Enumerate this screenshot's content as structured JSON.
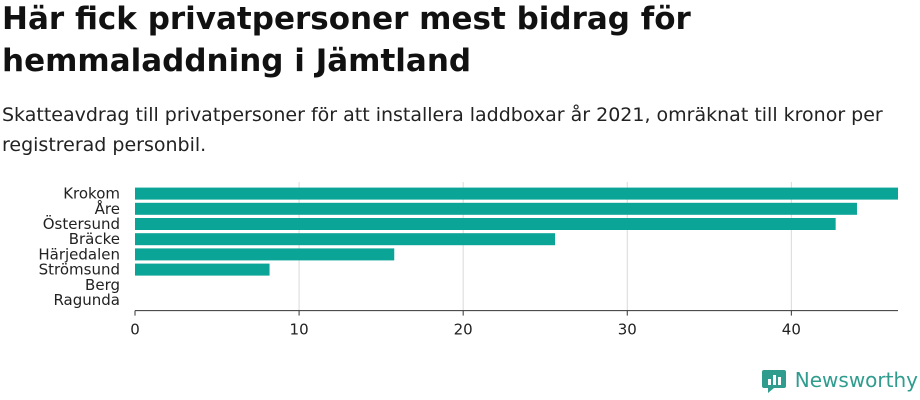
{
  "header": {
    "title": "Här fick privatpersoner mest bidrag för hemmaladdning i Jämtland",
    "subtitle": "Skatteavdrag till privatpersoner för att installera laddboxar år 2021, omräknat till kronor per registrerad personbil."
  },
  "brand": {
    "name": "Newsworthy",
    "icon": "newsworthy-logo-icon",
    "color": "#2f9c8e"
  },
  "colors": {
    "bar": "#0aa597",
    "grid": "#d9d9d9",
    "axis": "#333333",
    "text": "#222222"
  },
  "chart_data": {
    "type": "bar",
    "orientation": "horizontal",
    "categories": [
      "Krokom",
      "Åre",
      "Östersund",
      "Bräcke",
      "Härjedalen",
      "Strömsund",
      "Berg",
      "Ragunda"
    ],
    "values": [
      46.5,
      44.0,
      42.7,
      25.6,
      15.8,
      8.2,
      0,
      0
    ],
    "xlim": [
      0,
      46.5
    ],
    "xticks": [
      0,
      10,
      20,
      30,
      40
    ],
    "grid": true,
    "xlabel": "",
    "ylabel": ""
  }
}
